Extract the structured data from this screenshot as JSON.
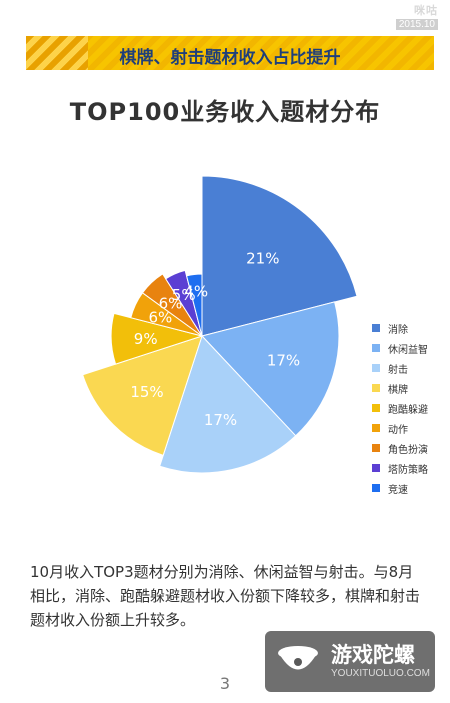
{
  "logo": {
    "brand": "咪咕",
    "date": "2015.10"
  },
  "banner": {
    "text": "棋牌、射击题材收入占比提升"
  },
  "chart_data": {
    "type": "pie",
    "title": "TOP100业务收入题材分布",
    "legend_position": "right",
    "slices": [
      {
        "label": "消除",
        "value": 21,
        "display": "21%",
        "color": "#4a7fd4"
      },
      {
        "label": "休闲益智",
        "value": 17,
        "display": "17%",
        "color": "#7cb2f3"
      },
      {
        "label": "射击",
        "value": 17,
        "display": "17%",
        "color": "#a9d1f9"
      },
      {
        "label": "棋牌",
        "value": 15,
        "display": "15%",
        "color": "#fad851"
      },
      {
        "label": "跑酷躲避",
        "value": 9,
        "display": "9%",
        "color": "#f2bf0a"
      },
      {
        "label": "动作",
        "value": 6,
        "display": "6%",
        "color": "#f1a20a"
      },
      {
        "label": "角色扮演",
        "value": 6,
        "display": "6%",
        "color": "#e8830f"
      },
      {
        "label": "塔防策略",
        "value": 5,
        "display": "5%",
        "color": "#5b3fd3"
      },
      {
        "label": "竞速",
        "value": 4,
        "display": "4%",
        "color": "#1e6ef0"
      }
    ]
  },
  "description": "10月收入TOP3题材分别为消除、休闲益智与射击。与8月相比，消除、跑酷躲避题材收入份额下降较多，棋牌和射击题材收入份额上升较多。",
  "page_number": "3",
  "watermark": {
    "name": "游戏陀螺",
    "url": "YOUXITUOLUO.COM",
    "icon": "spinning-top-icon"
  }
}
